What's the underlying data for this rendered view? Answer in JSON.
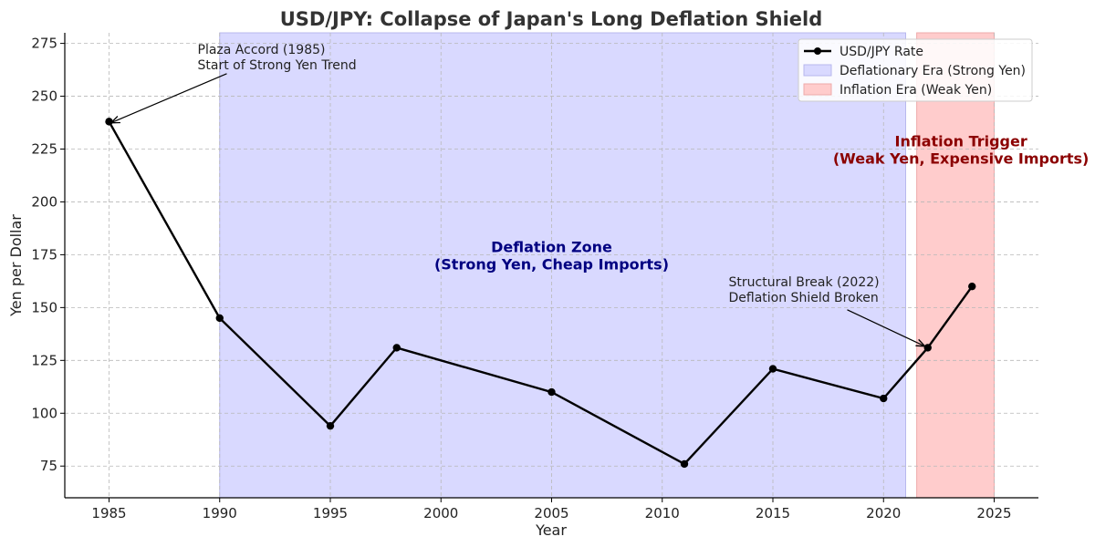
{
  "chart_data": {
    "type": "line",
    "title": "USD/JPY: Collapse of Japan's Long Deflation Shield",
    "xlabel": "Year",
    "ylabel": "Yen per Dollar",
    "xlim": [
      1983,
      2027
    ],
    "ylim": [
      60,
      280
    ],
    "x_ticks": [
      1985,
      1990,
      1995,
      2000,
      2005,
      2010,
      2015,
      2020,
      2025
    ],
    "y_ticks": [
      75,
      100,
      125,
      150,
      175,
      200,
      225,
      250,
      275
    ],
    "grid": true,
    "legend_position": "top-right",
    "series": [
      {
        "name": "USD/JPY Rate",
        "color": "#000000",
        "marker": "circle",
        "points": [
          {
            "x": 1985,
            "y": 238
          },
          {
            "x": 1990,
            "y": 145
          },
          {
            "x": 1995,
            "y": 94
          },
          {
            "x": 1998,
            "y": 131
          },
          {
            "x": 2005,
            "y": 110
          },
          {
            "x": 2011,
            "y": 76
          },
          {
            "x": 2015,
            "y": 121
          },
          {
            "x": 2020,
            "y": 107
          },
          {
            "x": 2022,
            "y": 131
          },
          {
            "x": 2024,
            "y": 160
          }
        ]
      }
    ],
    "bands": [
      {
        "label": "Deflationary Era (Strong Yen)",
        "x_start": 1990,
        "x_end": 2021,
        "color": "#d9d9ff",
        "edge_color": "#b8b8ee"
      },
      {
        "label": "Inflation Era (Weak Yen)",
        "x_start": 2021.5,
        "x_end": 2025,
        "color": "#ffcccc",
        "edge_color": "#eeaaaa"
      }
    ],
    "annotations": [
      {
        "lines": [
          "Plaza Accord (1985)",
          "Start of Strong Yen Trend"
        ],
        "point": {
          "x": 1985,
          "y": 238
        },
        "text_at": {
          "x": 1989,
          "y": 265
        }
      },
      {
        "lines": [
          "Structural Break (2022)",
          "Deflation Shield Broken"
        ],
        "point": {
          "x": 2022,
          "y": 131
        },
        "text_at": {
          "x": 2013,
          "y": 155
        }
      }
    ],
    "zone_labels": [
      {
        "lines": [
          "Deflation Zone",
          "(Strong Yen, Cheap Imports)"
        ],
        "x": 2005,
        "y": 175,
        "color": "#000080"
      },
      {
        "lines": [
          "Inflation Trigger",
          "(Weak Yen, Expensive Imports)"
        ],
        "x": 2023.5,
        "y": 225,
        "color": "#8b0000"
      }
    ]
  }
}
